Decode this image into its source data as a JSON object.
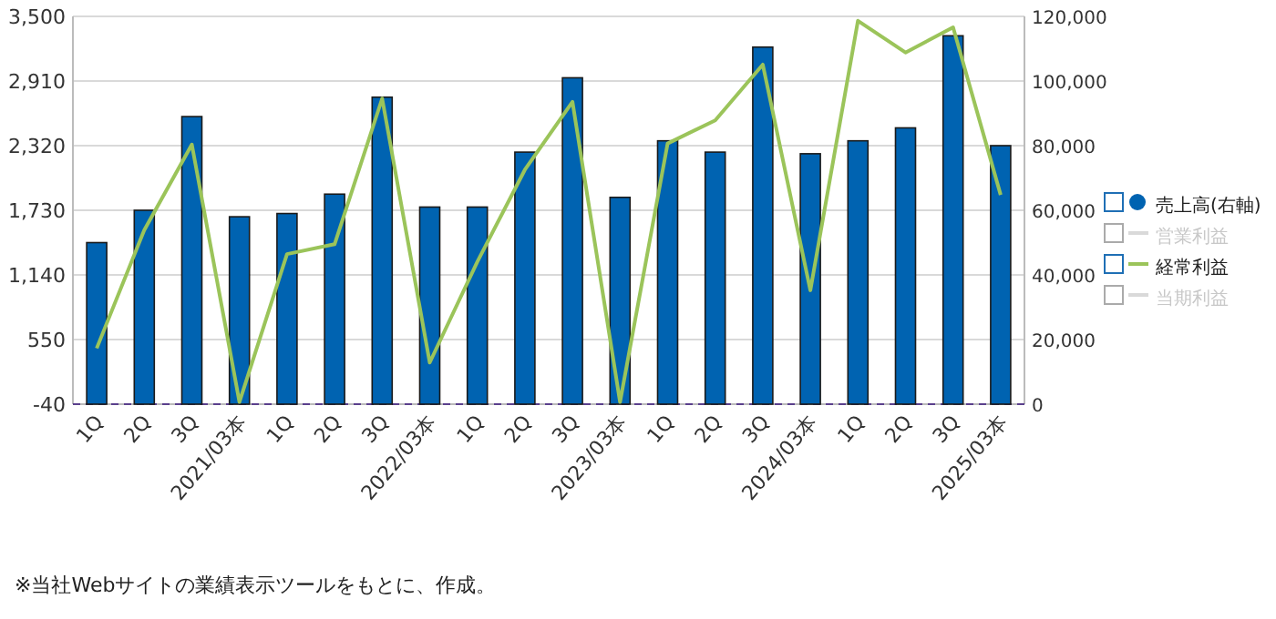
{
  "chart_data": {
    "type": "bar",
    "categories": [
      "1Q",
      "2Q",
      "3Q",
      "2021/03本",
      "1Q",
      "2Q",
      "3Q",
      "2022/03本",
      "1Q",
      "2Q",
      "3Q",
      "2023/03本",
      "1Q",
      "2Q",
      "3Q",
      "2024/03本",
      "1Q",
      "2Q",
      "3Q",
      "2025/03本"
    ],
    "series": [
      {
        "name": "売上高(右軸)",
        "axis": "y2",
        "color": "#0063b1",
        "values": [
          50000,
          60000,
          89000,
          58000,
          59000,
          65000,
          95000,
          61000,
          61000,
          78000,
          101000,
          64000,
          81500,
          78000,
          110500,
          77500,
          81500,
          85500,
          114000,
          80000
        ]
      },
      {
        "name": "営業利益",
        "type": "line",
        "color": "#d9d9d9",
        "values": [
          null,
          null,
          null,
          null,
          null,
          null,
          null,
          null,
          null,
          null,
          null,
          null,
          null,
          null,
          null,
          null,
          null,
          null,
          null,
          null
        ]
      },
      {
        "name": "経常利益",
        "type": "line",
        "color": "#9bc45a",
        "values": [
          470,
          1550,
          2330,
          -20,
          1330,
          1420,
          2750,
          340,
          1260,
          2100,
          2720,
          -20,
          2340,
          2550,
          3060,
          1000,
          3460,
          3170,
          3400,
          1870
        ]
      },
      {
        "name": "当期利益",
        "type": "line",
        "color": "#d9d9d9",
        "values": [
          null,
          null,
          null,
          null,
          null,
          null,
          null,
          null,
          null,
          null,
          null,
          null,
          null,
          null,
          null,
          null,
          null,
          null,
          null,
          null
        ]
      }
    ],
    "ylim": [
      -40,
      3500
    ],
    "yticks": [
      {
        "value": -40,
        "label": "-40"
      },
      {
        "value": 550,
        "label": "550"
      },
      {
        "value": 1140,
        "label": "1,140"
      },
      {
        "value": 1730,
        "label": "1,730"
      },
      {
        "value": 2320,
        "label": "2,320"
      },
      {
        "value": 2910,
        "label": "2,910"
      },
      {
        "value": 3500,
        "label": "3,500"
      }
    ],
    "y2lim": [
      0,
      120000
    ],
    "y2ticks": [
      0,
      {
        "value": 20000,
        "label": "20,000"
      },
      {
        "value": 40000,
        "label": "40,000"
      },
      {
        "value": 60000,
        "label": "60,000"
      },
      {
        "value": 80000,
        "label": "80,000"
      },
      {
        "value": 100000,
        "label": "100,000"
      },
      {
        "value": 120000,
        "label": "120,000"
      }
    ],
    "ref_lines": [
      {
        "axis": "y2",
        "value": 0,
        "color": "#5a3f8c",
        "line_style": "dashed"
      }
    ],
    "grid": "y",
    "legend": "right",
    "annotations": [
      "※当社Webサイトの業績表示ツールをもとに、作成。"
    ]
  }
}
